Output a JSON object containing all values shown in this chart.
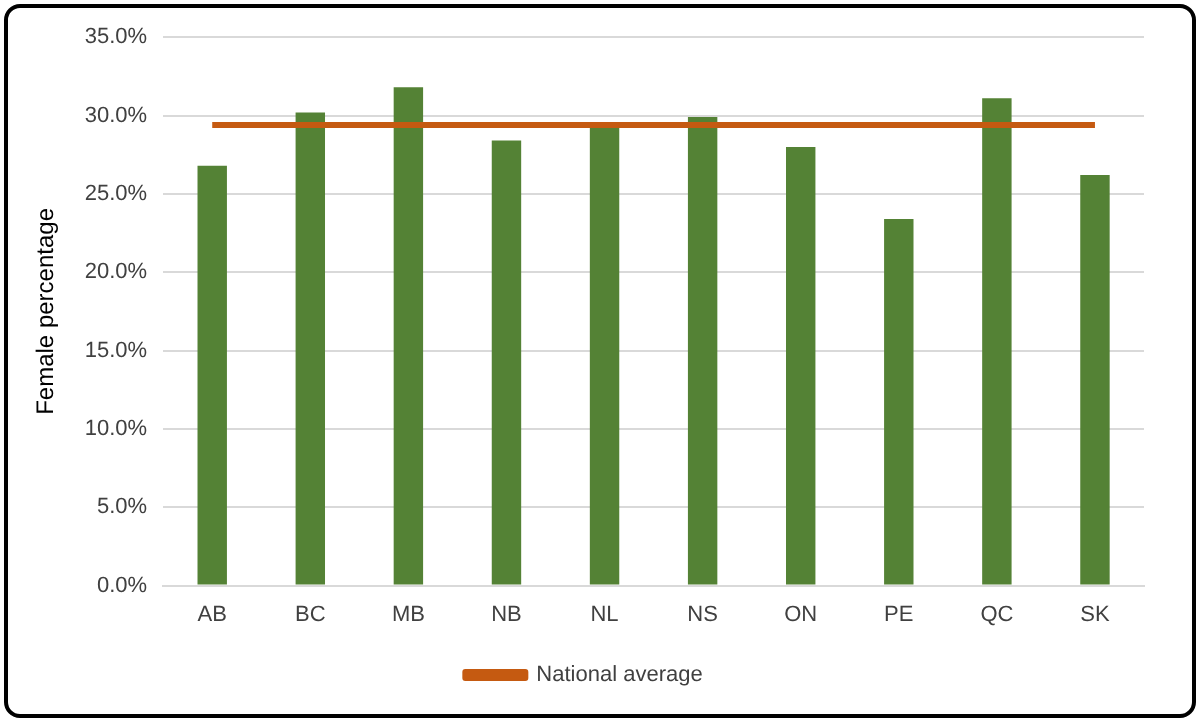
{
  "chart_data": {
    "type": "bar",
    "ylabel": "Female percentage",
    "categories": [
      "AB",
      "BC",
      "MB",
      "NB",
      "NL",
      "NS",
      "ON",
      "PE",
      "QC",
      "SK"
    ],
    "series": [
      {
        "color": "#548235",
        "values": [
          26.8,
          30.2,
          31.8,
          28.4,
          29.4,
          29.9,
          28.0,
          23.4,
          31.1,
          26.2
        ]
      },
      {
        "type": "line",
        "name": "National average",
        "color": "#c55a11",
        "values": [
          29.4,
          29.4,
          29.4,
          29.4,
          29.4,
          29.4,
          29.4,
          29.4,
          29.4,
          29.4
        ],
        "marker": "none"
      }
    ],
    "ylim": [
      0,
      35
    ],
    "yticks": [
      {
        "value": 0,
        "label": "0.0%"
      },
      {
        "value": 5,
        "label": "5.0%"
      },
      {
        "value": 10,
        "label": "10.0%"
      },
      {
        "value": 15,
        "label": "15.0%"
      },
      {
        "value": 20,
        "label": "20.0%"
      },
      {
        "value": 25,
        "label": "25.0%"
      },
      {
        "value": 30,
        "label": "30.0%"
      },
      {
        "value": 35,
        "label": "35.0%"
      }
    ],
    "grid": "y",
    "legend": "bottom"
  }
}
